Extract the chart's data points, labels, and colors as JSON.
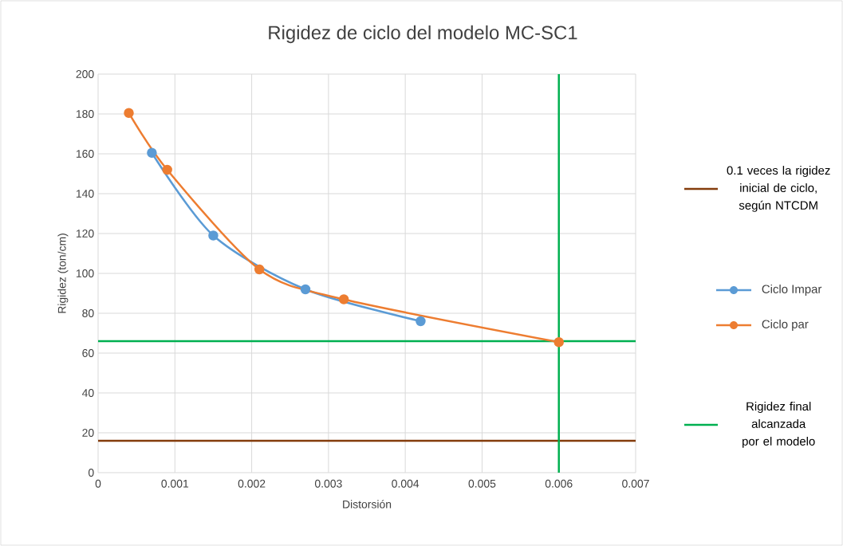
{
  "chart_data": {
    "type": "line",
    "title": "Rigidez de ciclo del modelo MC-SC1",
    "xlabel": "Distorsión",
    "ylabel": "Rigidez (ton/cm)",
    "series": [
      {
        "name": "Ciclo Impar",
        "color": "#5b9bd5",
        "x": [
          0.0007,
          0.0015,
          0.0027,
          0.0042
        ],
        "values": [
          160.5,
          119,
          92,
          76
        ]
      },
      {
        "name": "Ciclo par",
        "color": "#ed7d31",
        "x": [
          0.0004,
          0.0009,
          0.0021,
          0.0032,
          0.006
        ],
        "values": [
          180.5,
          152,
          102,
          87,
          65.5
        ]
      }
    ],
    "xlim": [
      0,
      0.007
    ],
    "xticks": [
      0,
      0.001,
      0.002,
      0.003,
      0.004,
      0.005,
      0.006,
      0.007
    ],
    "ylim": [
      0,
      200
    ],
    "yticks": [
      0,
      20,
      40,
      60,
      80,
      100,
      120,
      140,
      160,
      180,
      200
    ],
    "ref_lines": [
      {
        "axis": "y",
        "value": 16,
        "label": "0.1 veces la rigidez inicial de ciclo, según NTCDM",
        "color": "#843c0c"
      },
      {
        "axis": "y",
        "value": 66,
        "label": "Rigidez final alcanzada por el modelo",
        "color": "#00b050"
      },
      {
        "axis": "x",
        "value": 0.006,
        "color": "#00b050"
      }
    ],
    "grid": true,
    "legend": "right",
    "marker": "circle",
    "line_style": "solid"
  }
}
